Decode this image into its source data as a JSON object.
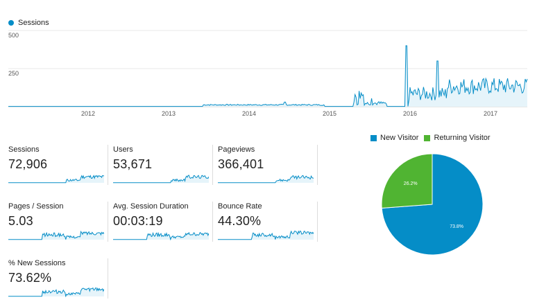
{
  "legend": {
    "series_name": "Sessions",
    "color": "#058dc7"
  },
  "chart_data": [
    {
      "type": "area",
      "series": [
        {
          "name": "Sessions"
        }
      ],
      "y_ticks": [
        "500",
        "250"
      ],
      "ylim": [
        0,
        500
      ],
      "x_ticks": [
        "2012",
        "2013",
        "2014",
        "2015",
        "2016",
        "2017"
      ],
      "x_range": [
        "2011-01",
        "2017-06"
      ],
      "grid": true
    },
    {
      "type": "pie",
      "slices": [
        {
          "label": "New Visitor",
          "value": 73.8,
          "value_label": "73.8%",
          "color": "#058dc7"
        },
        {
          "label": "Returning Visitor",
          "value": 26.2,
          "value_label": "26.2%",
          "color": "#50b432"
        }
      ],
      "legend_position": "top"
    }
  ],
  "metrics": [
    {
      "label": "Sessions",
      "value": "72,906",
      "level": 0.45
    },
    {
      "label": "Users",
      "value": "53,671",
      "level": 0.45
    },
    {
      "label": "Pageviews",
      "value": "366,401",
      "level": 0.4
    },
    {
      "label": "Pages / Session",
      "value": "5.03",
      "level": 0.5
    },
    {
      "label": "Avg. Session Duration",
      "value": "00:03:19",
      "level": 0.4
    },
    {
      "label": "Bounce Rate",
      "value": "44.30%",
      "level": 0.55
    },
    {
      "label": "% New Sessions",
      "value": "73.62%",
      "level": 0.55
    }
  ]
}
